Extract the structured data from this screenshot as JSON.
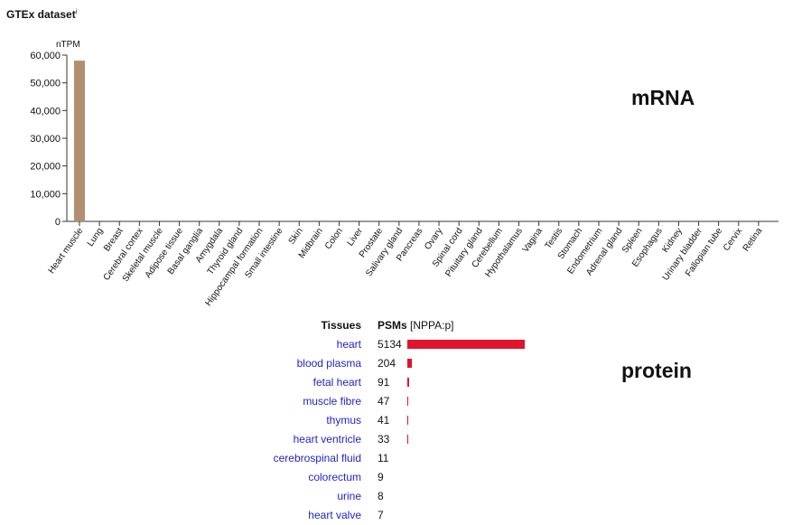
{
  "header": {
    "title": "GTEx dataset",
    "info_mark": "i"
  },
  "labels": {
    "mrna": "mRNA",
    "protein": "protein"
  },
  "colors": {
    "bar": "#b38f70",
    "psm_bar": "#e0142c",
    "link": "#2323c8"
  },
  "chart_data": {
    "type": "bar",
    "title": "GTEx dataset",
    "ylabel": "nTPM",
    "xlabel": "",
    "ylim": [
      0,
      60000
    ],
    "yticks": [
      0,
      10000,
      20000,
      30000,
      40000,
      50000,
      60000
    ],
    "ytick_labels": [
      "0",
      "10,000",
      "20,000",
      "30,000",
      "40,000",
      "50,000",
      "60,000"
    ],
    "grid": false,
    "categories": [
      "Heart muscle",
      "Lung",
      "Breast",
      "Cerebral cortex",
      "Skeletal muscle",
      "Adipose tissue",
      "Basal ganglia",
      "Amygdala",
      "Thyroid gland",
      "Hippocampal formation",
      "Small intestine",
      "Skin",
      "Midbrain",
      "Colon",
      "Liver",
      "Prostate",
      "Salivary gland",
      "Pancreas",
      "Ovary",
      "Spinal cord",
      "Pituitary gland",
      "Cerebellum",
      "Hypothalamus",
      "Vagina",
      "Testis",
      "Stomach",
      "Endometrium",
      "Adrenal gland",
      "Spleen",
      "Esophagus",
      "Kidney",
      "Urinary bladder",
      "Fallopian tube",
      "Cervix",
      "Retina"
    ],
    "values": [
      58000,
      0,
      0,
      0,
      0,
      0,
      0,
      0,
      0,
      0,
      0,
      0,
      0,
      0,
      0,
      0,
      0,
      0,
      0,
      0,
      0,
      0,
      0,
      0,
      0,
      0,
      0,
      0,
      0,
      0,
      0,
      0,
      0,
      0,
      0
    ]
  },
  "psm": {
    "header_tissues": "Tissues",
    "header_psms": "PSMs",
    "header_peptide": "[NPPA:p]",
    "max": 5134,
    "rows": [
      {
        "tissue": "heart",
        "count": "5134",
        "value": 5134
      },
      {
        "tissue": "blood plasma",
        "count": "204",
        "value": 204
      },
      {
        "tissue": "fetal heart",
        "count": "91",
        "value": 91
      },
      {
        "tissue": "muscle fibre",
        "count": "47",
        "value": 47
      },
      {
        "tissue": "thymus",
        "count": "41",
        "value": 41
      },
      {
        "tissue": "heart ventricle",
        "count": "33",
        "value": 33
      },
      {
        "tissue": "cerebrospinal fluid",
        "count": "11",
        "value": 11
      },
      {
        "tissue": "colorectum",
        "count": "9",
        "value": 9
      },
      {
        "tissue": "urine",
        "count": "8",
        "value": 8
      },
      {
        "tissue": "heart valve",
        "count": "7",
        "value": 7
      }
    ]
  }
}
